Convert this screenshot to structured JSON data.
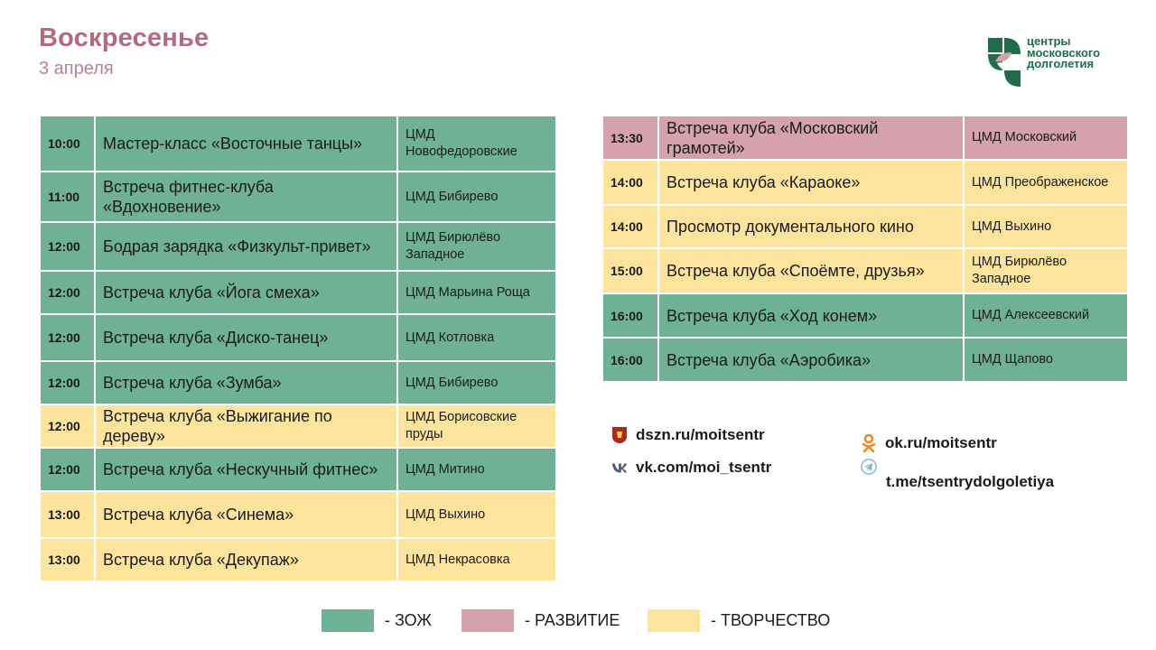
{
  "header": {
    "title": "Воскресенье",
    "subtitle": "3 апреля"
  },
  "logo": {
    "lines": [
      "центры",
      "московского",
      "долголетия"
    ]
  },
  "colors": {
    "zozh": "#6fb196",
    "razvitie": "#d4a1ac",
    "tvorchestvo": "#fde49d"
  },
  "schedule_left": [
    {
      "time": "10:00",
      "event": "Мастер-класс «Восточные танцы»",
      "place": "ЦМД Новофедоровские",
      "category": "green"
    },
    {
      "time": "11:00",
      "event": "Встреча фитнес-клуба «Вдохновение»",
      "place": "ЦМД Бибирево",
      "category": "green"
    },
    {
      "time": "12:00",
      "event": "Бодрая зарядка «Физкульт-привет»",
      "place": "ЦМД Бирюлёво Западное",
      "category": "green"
    },
    {
      "time": "12:00",
      "event": "Встреча клуба «Йога смеха»",
      "place": "ЦМД Марьина Роща",
      "category": "green"
    },
    {
      "time": "12:00",
      "event": "Встреча клуба «Диско-танец»",
      "place": "ЦМД Котловка",
      "category": "green"
    },
    {
      "time": "12:00",
      "event": "Встреча клуба «Зумба»",
      "place": "ЦМД Бибирево",
      "category": "green"
    },
    {
      "time": "12:00",
      "event": "Встреча клуба «Выжигание по дереву»",
      "place": "ЦМД Борисовские пруды",
      "category": "yellow"
    },
    {
      "time": "12:00",
      "event": "Встреча клуба «Нескучный фитнес»",
      "place": "ЦМД Митино",
      "category": "green"
    },
    {
      "time": "13:00",
      "event": "Встреча клуба «Синема»",
      "place": "ЦМД Выхино",
      "category": "yellow"
    },
    {
      "time": "13:00",
      "event": "Встреча клуба «Декупаж»",
      "place": "ЦМД Некрасовка",
      "category": "yellow"
    }
  ],
  "schedule_right": [
    {
      "time": "13:30",
      "event": "Встреча клуба «Московский грамотей»",
      "place": "ЦМД Московский",
      "category": "pink"
    },
    {
      "time": "14:00",
      "event": "Встреча клуба «Караоке»",
      "place": "ЦМД Преображенское",
      "category": "yellow"
    },
    {
      "time": "14:00",
      "event": "Просмотр документального кино",
      "place": "ЦМД Выхино",
      "category": "yellow"
    },
    {
      "time": "15:00",
      "event": "Встреча клуба «Споёмте, друзья»",
      "place": "ЦМД Бирюлёво Западное",
      "category": "yellow"
    },
    {
      "time": "16:00",
      "event": "Встреча клуба «Ход конем»",
      "place": "ЦМД Алексеевский",
      "category": "green"
    },
    {
      "time": "16:00",
      "event": "Встреча клуба «Аэробика»",
      "place": "ЦМД Щапово",
      "category": "green"
    }
  ],
  "links": {
    "dszn": "dszn.ru/moitsentr",
    "vk": "vk.com/moi_tsentr",
    "ok": "ok.ru/moitsentr",
    "telegram": "t.me/tsentrydolgoletiya"
  },
  "legend": {
    "zozh": "- ЗОЖ",
    "razvitie": "- РАЗВИТИЕ",
    "tvorchestvo": "- ТВОРЧЕСТВО"
  }
}
